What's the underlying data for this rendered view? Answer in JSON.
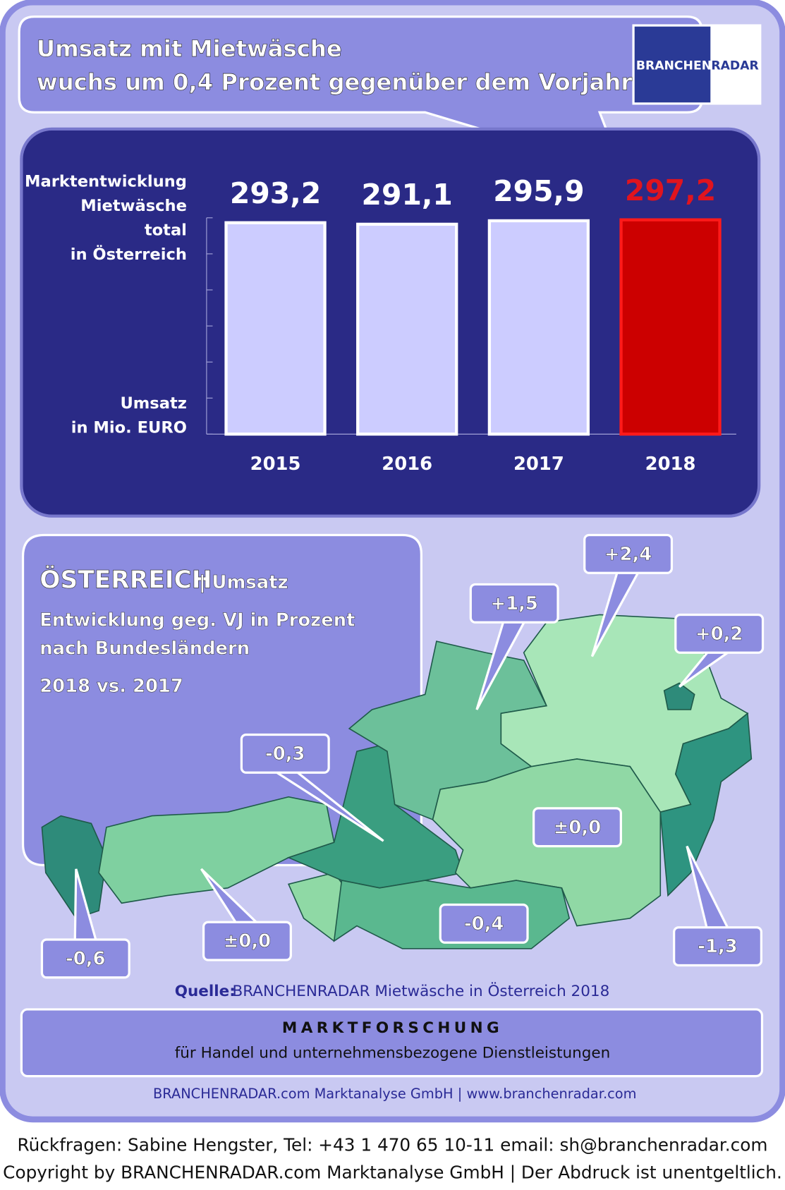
{
  "header": {
    "title_lines": [
      "Umsatz mit Mietwäsche",
      "wuchs um 0,4 Prozent gegenüber dem Vorjahr"
    ],
    "logo": {
      "left": "BRANCHEN",
      "right": "RADAR"
    }
  },
  "chart_data": {
    "type": "bar",
    "y_label_top": [
      "Marktentwicklung",
      "Mietwäsche",
      "total",
      "in Österreich"
    ],
    "y_label_bottom": [
      "Umsatz",
      "in Mio. EURO"
    ],
    "categories": [
      "2015",
      "2016",
      "2017",
      "2018"
    ],
    "values": [
      293.2,
      291.1,
      295.9,
      297.2
    ],
    "value_labels": [
      "293,2",
      "291,1",
      "295,9",
      "297,2"
    ],
    "colors": [
      "#ccccff",
      "#ccccff",
      "#ccccff",
      "#cc0000"
    ],
    "value_label_colors": [
      "#ffffff",
      "#ffffff",
      "#ffffff",
      "#e0141e"
    ],
    "ylim": [
      0,
      300
    ],
    "yticks": [
      0,
      50,
      100,
      150,
      200,
      250,
      300
    ]
  },
  "map": {
    "title": "ÖSTERREICH",
    "title_suffix": "| Umsatz",
    "subtitle_lines": [
      "Entwicklung geg. VJ in Prozent",
      "nach Bundesländern"
    ],
    "period": "2018 vs. 2017",
    "callouts": [
      "+2,4",
      "+1,5",
      "+0,2",
      "-0,3",
      "±0,0",
      "-0,6",
      "±0,0",
      "-0,4",
      "-1,3"
    ]
  },
  "source": {
    "label": "Quelle:",
    "text": "BRANCHENRADAR Mietwäsche in Österreich 2018"
  },
  "banner": {
    "title": "MARKTFORSCHUNG",
    "subtitle": "für Handel und unternehmensbezogene Dienstleistungen"
  },
  "company": "BRANCHENRADAR.com Marktanalyse GmbH | www.branchenradar.com",
  "contact": "Rückfragen: Sabine Hengster, Tel: +43 1 470 65 10-11 email: sh@branchenradar.com",
  "copyright": "Copyright by BRANCHENRADAR.com  Marktanalyse GmbH | Der Abdruck ist unentgeltlich."
}
